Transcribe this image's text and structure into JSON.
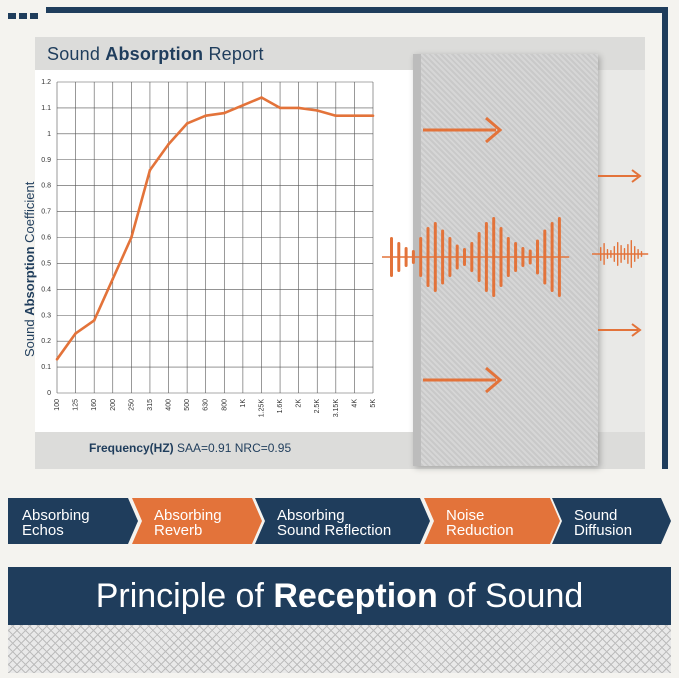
{
  "report": {
    "title_pre": "Sound ",
    "title_bold": "Absorption",
    "title_post": " Report",
    "y_label_pre": "Sound ",
    "y_label_bold": "Absorption",
    "y_label_post": " Coefficient",
    "freq_label": "Frequency(HZ)",
    "saa": "SAA=0.91",
    "nrc": "NRC=0.95"
  },
  "colors": {
    "navy": "#1f3d5c",
    "orange": "#e3733a",
    "panel_grey": "#cfcfcf"
  },
  "chart_data": {
    "type": "line",
    "categories": [
      "100",
      "125",
      "160",
      "200",
      "250",
      "315",
      "400",
      "500",
      "630",
      "800",
      "1K",
      "1.25K",
      "1.6K",
      "2K",
      "2.5K",
      "3.15K",
      "4K",
      "5K"
    ],
    "series": [
      {
        "values": [
          0.13,
          0.23,
          0.28,
          0.44,
          0.6,
          0.86,
          0.96,
          1.04,
          1.07,
          1.08,
          1.11,
          1.14,
          1.1,
          1.1,
          1.09,
          1.07,
          1.07,
          1.07
        ]
      }
    ],
    "y_ticks": [
      "0",
      "0.1",
      "0.2",
      "0.3",
      "0.4",
      "0.5",
      "0.6",
      "0.7",
      "0.8",
      "0.9",
      "1",
      "1.1",
      "1.2"
    ],
    "ylim": [
      0,
      1.2
    ],
    "grid": true,
    "line_color": "#e3733a"
  },
  "features": [
    {
      "label": "Absorbing\nEchos",
      "style": "navy"
    },
    {
      "label": "Absorbing\nReverb",
      "style": "orange"
    },
    {
      "label": "Absorbing\nSound Reflection",
      "style": "navy"
    },
    {
      "label": "Noise\nReduction",
      "style": "orange"
    },
    {
      "label": "Sound\nDiffusion",
      "style": "navy"
    }
  ],
  "banner": {
    "pre": "Principle of ",
    "bold": "Reception",
    "post": " of Sound"
  },
  "icons": {
    "incoming_arrow": "arrow-right-icon",
    "sound_wave": "sound-wave-icon",
    "outgoing_arrow": "small-arrow-right-icon"
  }
}
